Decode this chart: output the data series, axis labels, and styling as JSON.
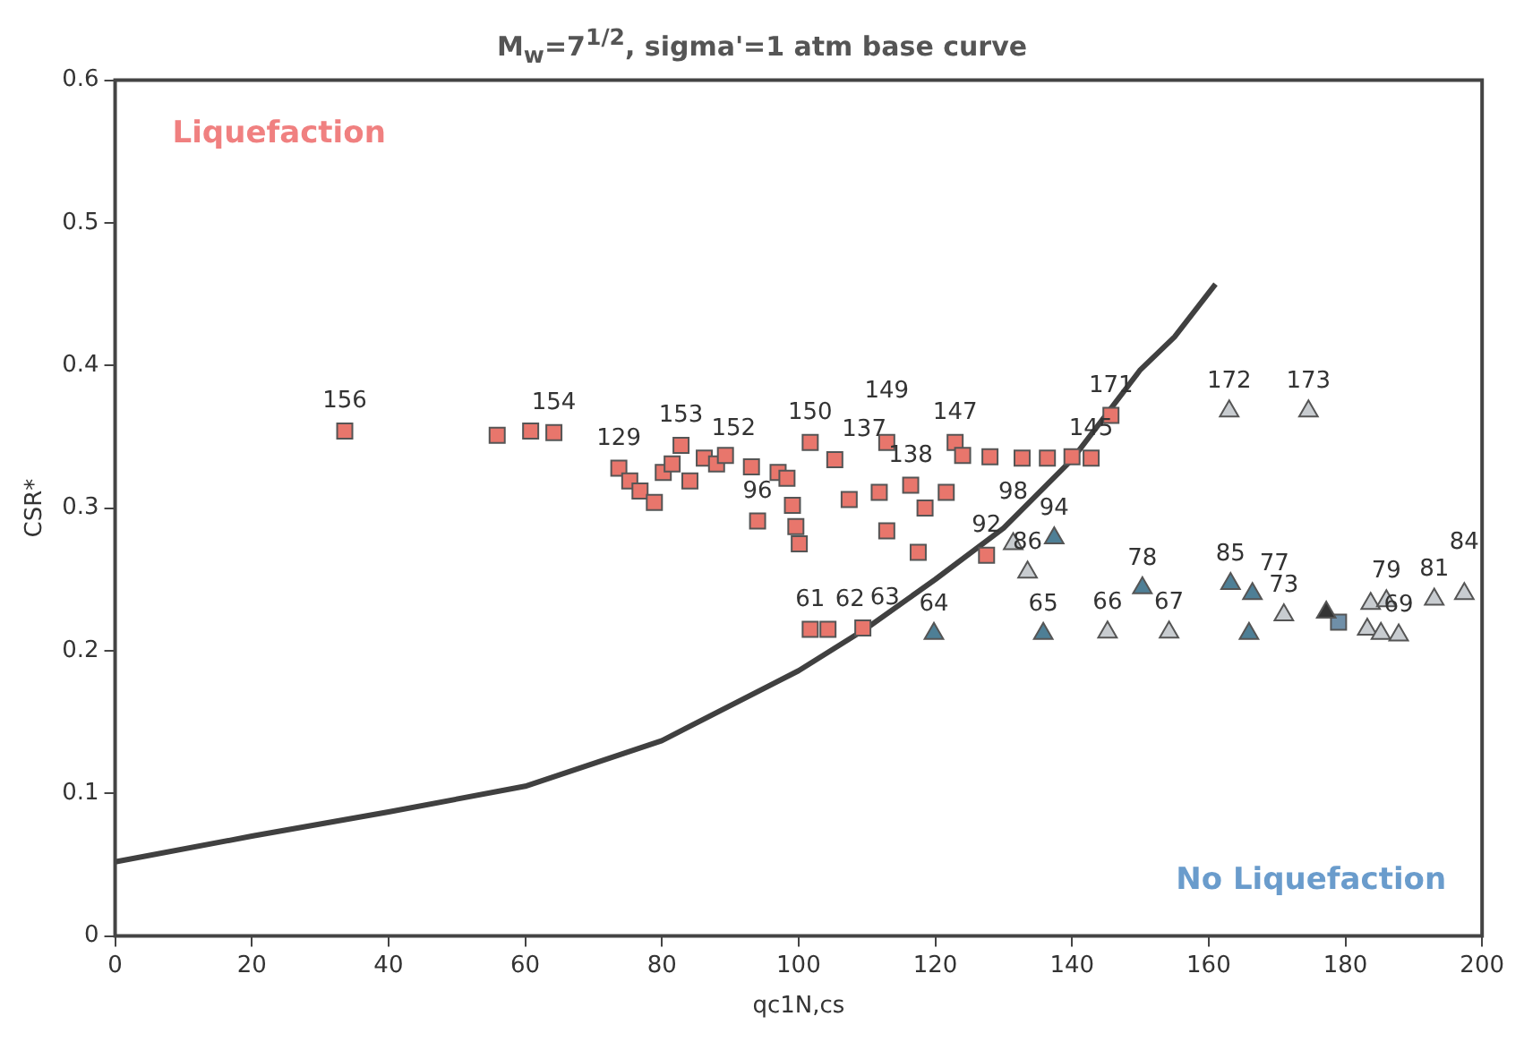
{
  "chart_data": {
    "type": "scatter",
    "title": "M$_{w}$=7$^{1/2}$, sigma'=1 atm base curve",
    "xlabel": "qc1N,cs",
    "ylabel": "CSR*",
    "xlim": [
      0,
      200
    ],
    "ylim": [
      0,
      0.6
    ],
    "xticks": [
      0,
      20,
      40,
      60,
      80,
      100,
      120,
      140,
      160,
      180,
      200
    ],
    "yticks": [
      0,
      0.1,
      0.2,
      0.3,
      0.4,
      0.5,
      0.6
    ],
    "grid": false,
    "legend": false,
    "annotations": [
      "Liquefaction",
      "No Liquefaction",
      {
        "text": "156",
        "x": 33.6,
        "y": 0.354
      },
      {
        "text": "154",
        "x": 64.2,
        "y": 0.353
      },
      {
        "text": "129",
        "x": 73.7,
        "y": 0.328
      },
      {
        "text": "153",
        "x": 82.8,
        "y": 0.344
      },
      {
        "text": "152",
        "x": 86.2,
        "y": 0.335
      },
      {
        "text": "96",
        "x": 94,
        "y": 0.291
      },
      {
        "text": "61",
        "x": 101.7,
        "y": 0.215
      },
      {
        "text": "62",
        "x": 104.3,
        "y": 0.215
      },
      {
        "text": "63",
        "x": 109.4,
        "y": 0.216
      },
      {
        "text": "150",
        "x": 101.7,
        "y": 0.346
      },
      {
        "text": "137",
        "x": 105.3,
        "y": 0.334
      },
      {
        "text": "149",
        "x": 112.9,
        "y": 0.346
      },
      {
        "text": "138",
        "x": 116.4,
        "y": 0.316
      },
      {
        "text": "147",
        "x": 122.9,
        "y": 0.346
      },
      {
        "text": "145",
        "x": 142.8,
        "y": 0.335
      },
      {
        "text": "171",
        "x": 145.7,
        "y": 0.365
      },
      {
        "text": "92",
        "x": 127.5,
        "y": 0.267
      },
      {
        "text": "64",
        "x": 119.8,
        "y": 0.212
      },
      {
        "text": "65",
        "x": 135.8,
        "y": 0.212
      },
      {
        "text": "94",
        "x": 137.4,
        "y": 0.279
      },
      {
        "text": "78",
        "x": 150.3,
        "y": 0.244
      },
      {
        "text": "85",
        "x": 163.2,
        "y": 0.247
      },
      {
        "text": "77",
        "x": 166.4,
        "y": 0.24
      },
      {
        "text": "98",
        "x": 131.4,
        "y": 0.275
      },
      {
        "text": "86",
        "x": 133.5,
        "y": 0.255
      },
      {
        "text": "172",
        "x": 163,
        "y": 0.368
      },
      {
        "text": "173",
        "x": 174.6,
        "y": 0.368
      },
      {
        "text": "66",
        "x": 145.2,
        "y": 0.213
      },
      {
        "text": "67",
        "x": 154.2,
        "y": 0.213
      },
      {
        "text": "73",
        "x": 171,
        "y": 0.225
      },
      {
        "text": "79",
        "x": 186,
        "y": 0.235
      },
      {
        "text": "69",
        "x": 187.8,
        "y": 0.211
      },
      {
        "text": "81",
        "x": 193,
        "y": 0.236
      },
      {
        "text": "84",
        "x": 197.4,
        "y": 0.24
      }
    ],
    "series": [
      {
        "type": "line",
        "color": "#404040",
        "marker": "none",
        "line_style": "solid",
        "x": [
          0,
          20,
          40,
          60,
          80,
          100,
          110,
          120,
          130,
          140,
          150,
          155,
          161
        ],
        "values": [
          0.052,
          0.07,
          0.087,
          0.105,
          0.137,
          0.186,
          0.216,
          0.25,
          0.286,
          0.334,
          0.397,
          0.42,
          0.457
        ]
      },
      {
        "color": "#e8766c",
        "marker": "square",
        "x": [
          33.6,
          55.9,
          60.8,
          64.2,
          73.7,
          75.3,
          76.8,
          78.9,
          80.2,
          81.5,
          82.8,
          84.1,
          86.2,
          88,
          89.3,
          93.1,
          94,
          97,
          98.3,
          99.1,
          99.6,
          100.1,
          101.7,
          104.3,
          109.4,
          101.7,
          105.3,
          107.4,
          111.8,
          112.9,
          112.9,
          116.4,
          117.5,
          118.5,
          121.6,
          122.9,
          124,
          128,
          132.7,
          136.4,
          140,
          142.8,
          145.7,
          127.5
        ],
        "values": [
          0.354,
          0.351,
          0.354,
          0.353,
          0.328,
          0.319,
          0.312,
          0.304,
          0.325,
          0.331,
          0.344,
          0.319,
          0.335,
          0.331,
          0.337,
          0.329,
          0.291,
          0.325,
          0.321,
          0.302,
          0.287,
          0.275,
          0.215,
          0.215,
          0.216,
          0.346,
          0.334,
          0.306,
          0.311,
          0.284,
          0.346,
          0.316,
          0.269,
          0.3,
          0.311,
          0.346,
          0.337,
          0.336,
          0.335,
          0.335,
          0.336,
          0.335,
          0.365,
          0.267
        ]
      },
      {
        "color": "#4e7f96",
        "marker": "triangle",
        "x": [
          119.8,
          135.8,
          137.4,
          150.3,
          163.2,
          166.4,
          165.9
        ],
        "values": [
          0.212,
          0.212,
          0.279,
          0.244,
          0.247,
          0.24,
          0.212
        ]
      },
      {
        "color": "#c8ccd0",
        "marker": "triangle",
        "x": [
          131.4,
          133.5,
          163,
          174.6,
          145.2,
          154.2,
          171,
          183.7,
          186,
          183.2,
          185.2,
          187.8,
          193,
          197.4
        ],
        "values": [
          0.275,
          0.255,
          0.368,
          0.368,
          0.213,
          0.213,
          0.225,
          0.233,
          0.235,
          0.215,
          0.212,
          0.211,
          0.236,
          0.24
        ]
      },
      {
        "color": "#333333",
        "marker": "triangle",
        "x": [
          177.2
        ],
        "values": [
          0.227
        ]
      },
      {
        "color": "#6f8fa8",
        "marker": "square",
        "x": [
          179
        ],
        "values": [
          0.22
        ]
      }
    ]
  }
}
